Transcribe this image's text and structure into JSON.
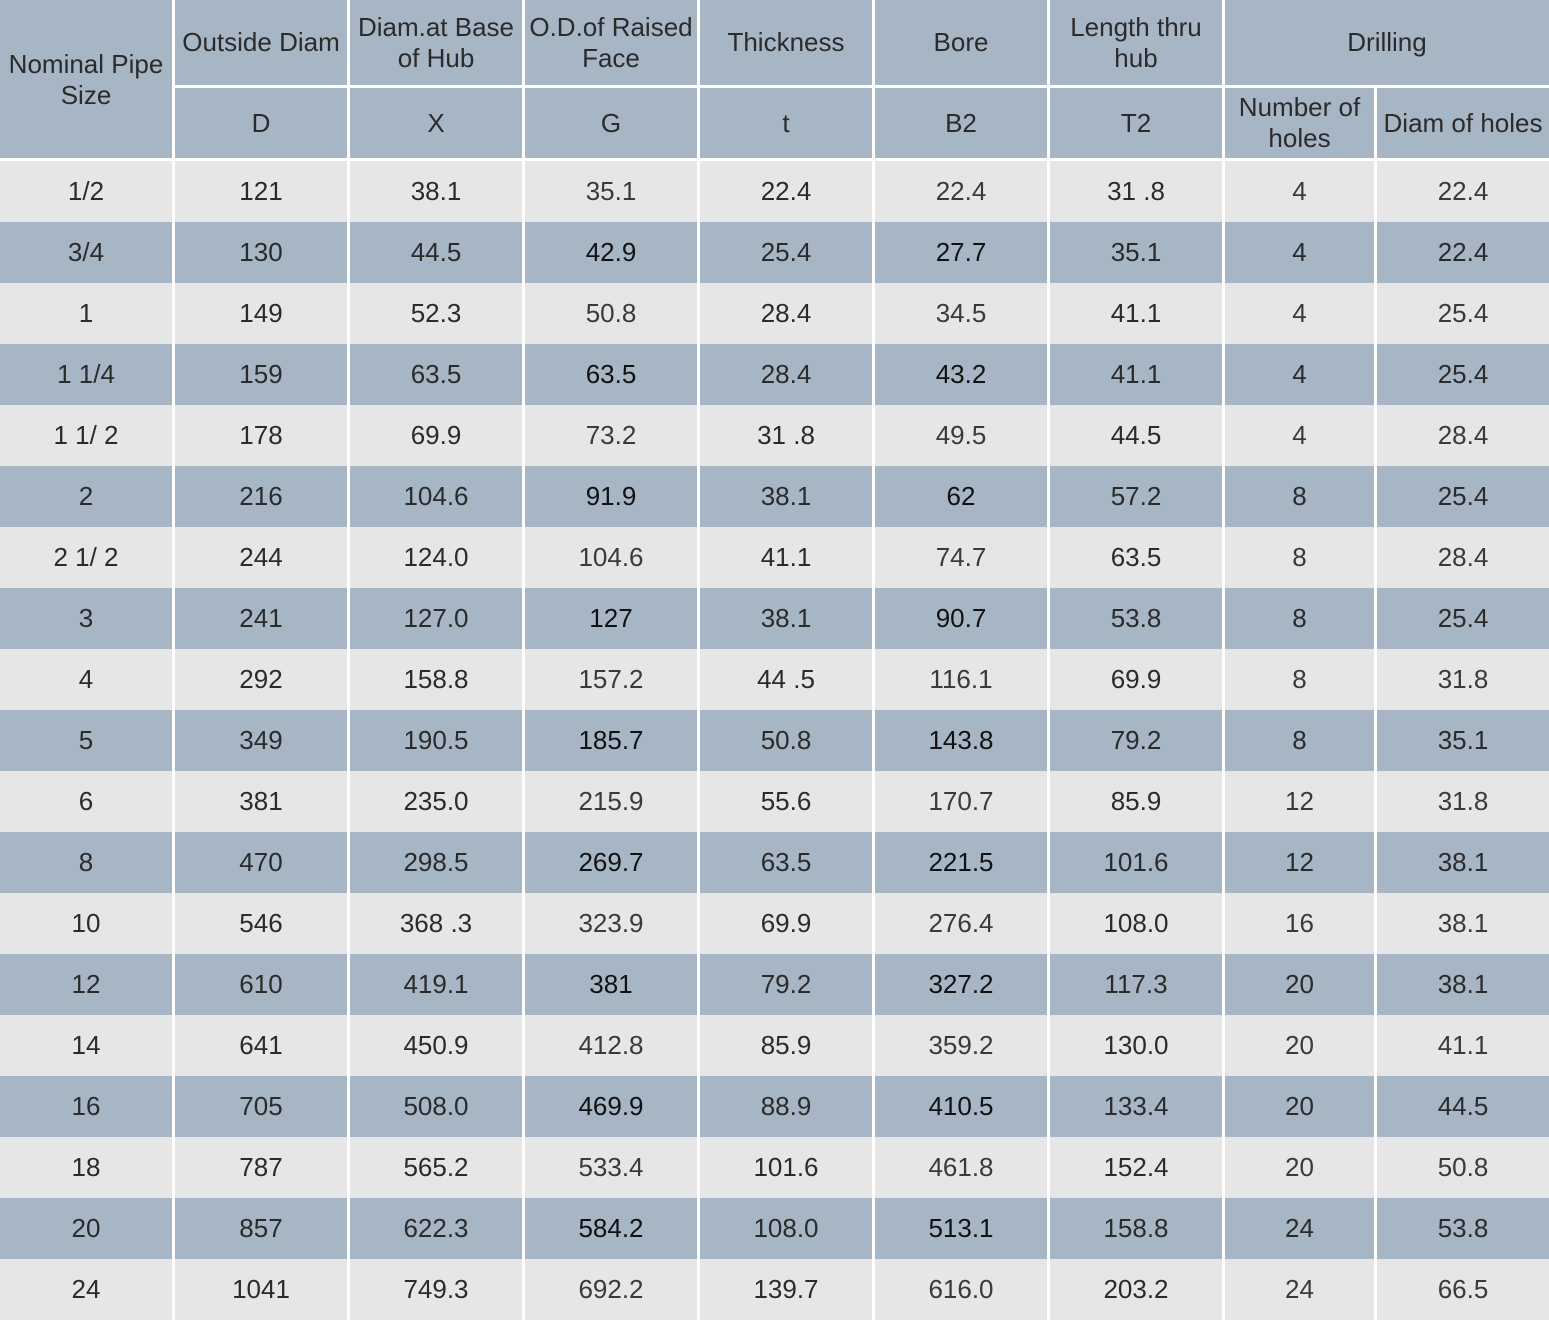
{
  "header": {
    "nominal": "Nominal Pipe Size",
    "columns": [
      {
        "title": "Outside Diam",
        "symbol": "D"
      },
      {
        "title": "Diam.at Base of Hub",
        "symbol": "X"
      },
      {
        "title": "O.D.of Raised Face",
        "symbol": "G"
      },
      {
        "title": "Thickness",
        "symbol": "t"
      },
      {
        "title": "Bore",
        "symbol": "B2"
      },
      {
        "title": "Length  thru hub",
        "symbol": "T2"
      }
    ],
    "drilling": "Drilling",
    "drilling_sub": [
      "Number of holes",
      "Diam of holes"
    ]
  },
  "rows": [
    [
      "1/2",
      "121",
      "38.1",
      "35.1",
      "22.4",
      "22.4",
      "31 .8",
      "4",
      "22.4"
    ],
    [
      "3/4",
      "130",
      "44.5",
      "42.9",
      "25.4",
      "27.7",
      "35.1",
      "4",
      "22.4"
    ],
    [
      "1",
      "149",
      "52.3",
      "50.8",
      "28.4",
      "34.5",
      "41.1",
      "4",
      "25.4"
    ],
    [
      "1 1/4",
      "159",
      "63.5",
      "63.5",
      "28.4",
      "43.2",
      "41.1",
      "4",
      "25.4"
    ],
    [
      "1 1/ 2",
      "178",
      "69.9",
      "73.2",
      "31 .8",
      "49.5",
      "44.5",
      "4",
      "28.4"
    ],
    [
      "2",
      "216",
      "104.6",
      "91.9",
      "38.1",
      "62",
      "57.2",
      "8",
      "25.4"
    ],
    [
      "2 1/ 2",
      "244",
      "124.0",
      "104.6",
      "41.1",
      "74.7",
      "63.5",
      "8",
      "28.4"
    ],
    [
      "3",
      "241",
      "127.0",
      "127",
      "38.1",
      "90.7",
      "53.8",
      "8",
      "25.4"
    ],
    [
      "4",
      "292",
      "158.8",
      "157.2",
      "44 .5",
      "116.1",
      "69.9",
      "8",
      "31.8"
    ],
    [
      "5",
      "349",
      "190.5",
      "185.7",
      "50.8",
      "143.8",
      "79.2",
      "8",
      "35.1"
    ],
    [
      "6",
      "381",
      "235.0",
      "215.9",
      "55.6",
      "170.7",
      "85.9",
      "12",
      "31.8"
    ],
    [
      "8",
      "470",
      "298.5",
      "269.7",
      "63.5",
      "221.5",
      "101.6",
      "12",
      "38.1"
    ],
    [
      "10",
      "546",
      "368 .3",
      "323.9",
      "69.9",
      "276.4",
      "108.0",
      "16",
      "38.1"
    ],
    [
      "12",
      "610",
      "419.1",
      "381",
      "79.2",
      "327.2",
      "117.3",
      "20",
      "38.1"
    ],
    [
      "14",
      "641",
      "450.9",
      "412.8",
      "85.9",
      "359.2",
      "130.0",
      "20",
      "41.1"
    ],
    [
      "16",
      "705",
      "508.0",
      "469.9",
      "88.9",
      "410.5",
      "133.4",
      "20",
      "44.5"
    ],
    [
      "18",
      "787",
      "565.2",
      "533.4",
      "101.6",
      "461.8",
      "152.4",
      "20",
      "50.8"
    ],
    [
      "20",
      "857",
      "622.3",
      "584.2",
      "108.0",
      "513.1",
      "158.8",
      "24",
      "53.8"
    ],
    [
      "24",
      "1041",
      "749.3",
      "692.2",
      "139.7",
      "616.0",
      "203.2",
      "24",
      "66.5"
    ]
  ]
}
